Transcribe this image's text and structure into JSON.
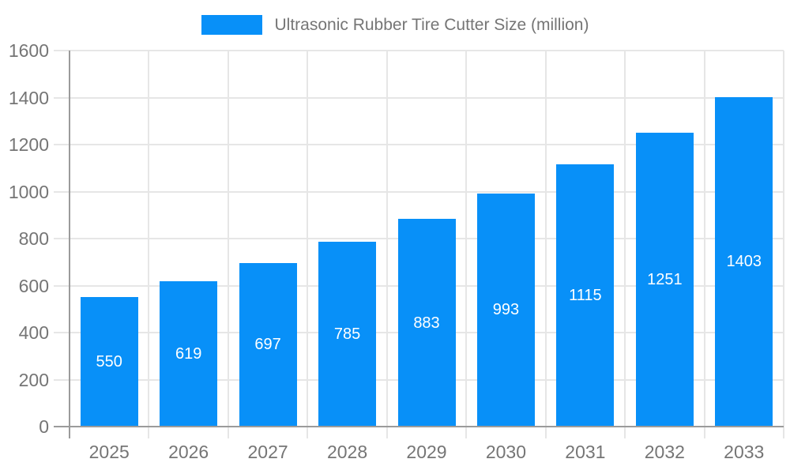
{
  "legend": {
    "label": "Ultrasonic Rubber Tire Cutter Size (million)"
  },
  "colors": {
    "bar": "#0890F8",
    "grid": "#E6E6E6",
    "axis": "#9B9B9B",
    "tick_text": "#757575",
    "value_text": "#FFFFFF",
    "background": "#FFFFFF"
  },
  "chart_data": {
    "type": "bar",
    "title": "Ultrasonic Rubber Tire Cutter Size (million)",
    "categories": [
      "2025",
      "2026",
      "2027",
      "2028",
      "2029",
      "2030",
      "2031",
      "2032",
      "2033"
    ],
    "values": [
      550,
      619,
      697,
      785,
      883,
      993,
      1115,
      1251,
      1403
    ],
    "xlabel": "",
    "ylabel": "",
    "ylim": [
      0,
      1600
    ],
    "ytick_step": 200,
    "yticks": [
      0,
      200,
      400,
      600,
      800,
      1000,
      1200,
      1400,
      1600
    ],
    "grid": true,
    "legend_position": "top-center",
    "value_label_position": "inside-center"
  }
}
